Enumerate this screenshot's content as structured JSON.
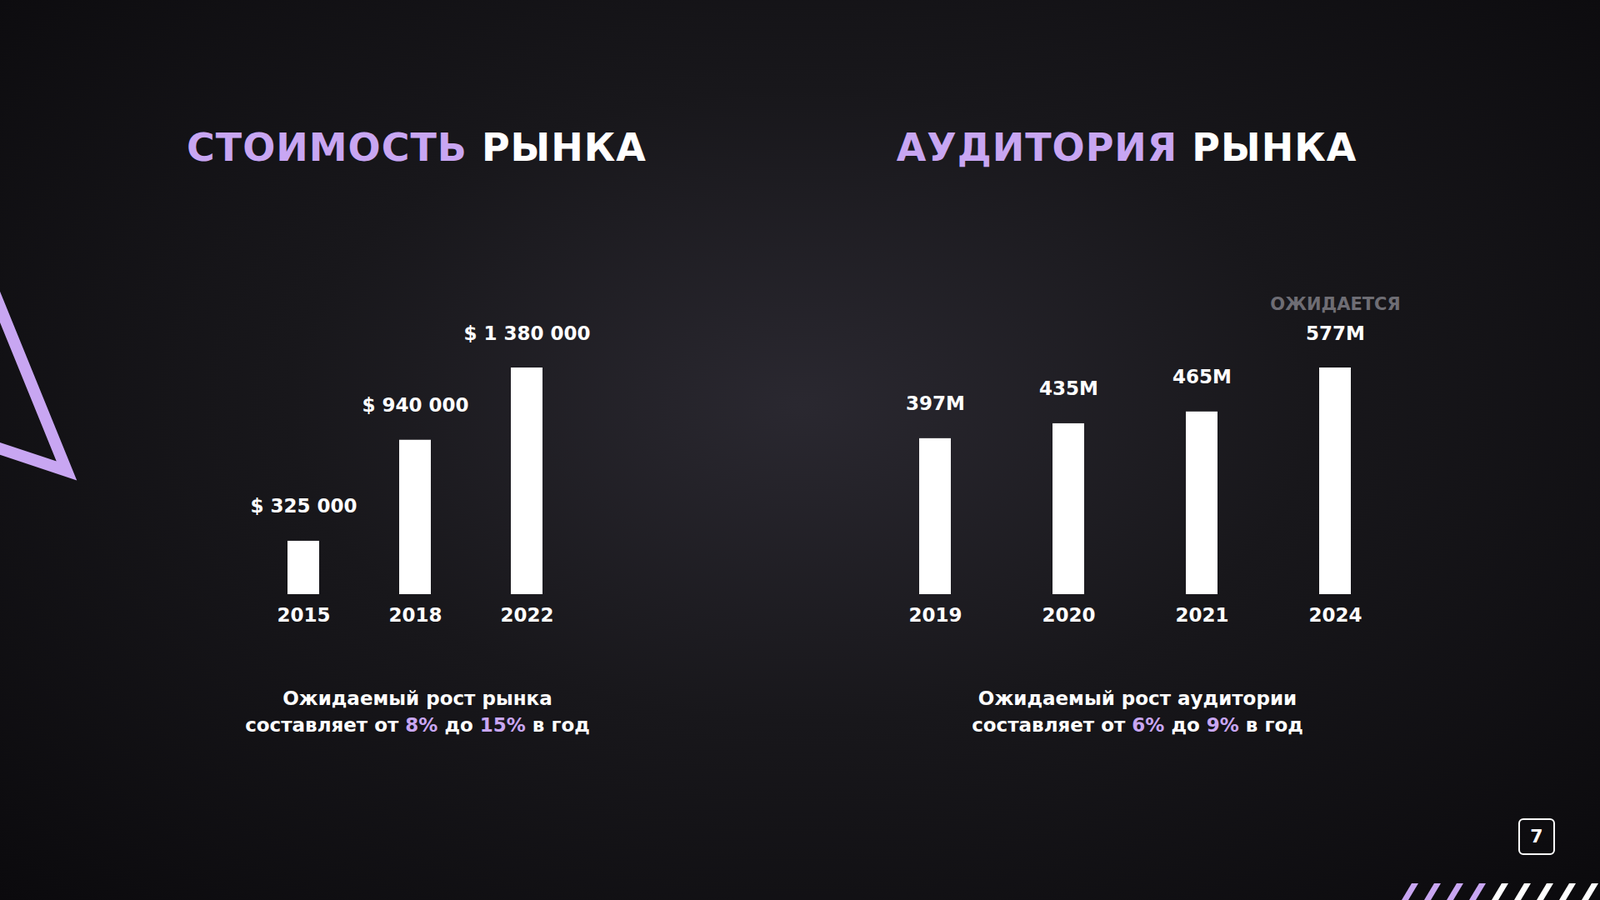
{
  "chart_data": [
    {
      "type": "bar",
      "title": "СТОИМОСТЬ РЫНКА",
      "categories": [
        "2015",
        "2018",
        "2022"
      ],
      "values": [
        325000,
        940000,
        1380000
      ],
      "value_labels": [
        "$ 325 000",
        "$ 940 000",
        "$ 1 380 000"
      ],
      "color": "#ffffff",
      "data_labels": true,
      "tick_labels": "x",
      "caption": "Ожидаемый рост рынка составляет от 8% до 15% в год"
    },
    {
      "type": "bar",
      "title": "АУДИТОРИЯ РЫНКА",
      "categories": [
        "2019",
        "2020",
        "2021",
        "2024"
      ],
      "values": [
        397000000,
        435000000,
        465000000,
        577000000
      ],
      "value_labels": [
        "397M",
        "435M",
        "465M",
        "577M"
      ],
      "color": "#ffffff",
      "data_labels": true,
      "tick_labels": "x",
      "annotations": [
        {
          "category": "2024",
          "text": "ОЖИДАЕТСЯ"
        }
      ],
      "caption": "Ожидаемый рост аудитории составляет от 6% до 9% в год"
    }
  ],
  "page_number": "7"
}
